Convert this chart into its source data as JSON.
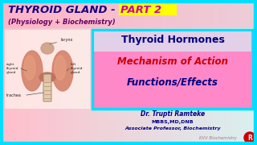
{
  "bg_gradient_left": "#FFB0B0",
  "bg_gradient_right": "#FFFFFF",
  "border_color": "#00DFFF",
  "title_text1": "THYROID GLAND - ",
  "title_text2": "PART 2",
  "subtitle": "(Physiology + Biochemistry)",
  "title_color1": "#1A0080",
  "title_color2": "#CC00AA",
  "title_underline_color": "#FFFF00",
  "subtitle_color": "#660066",
  "right_box_bg": "#FF88C8",
  "right_box_border": "#00DFFF",
  "line1": "Thyroid Hormones",
  "line2": "Mechanism of Action",
  "line3": "Functions/Effects",
  "line1_color": "#000080",
  "line2_color": "#CC0000",
  "line3_color": "#000080",
  "dr_name": "Dr. Trupti Ramteke",
  "dr_qual": "MBBS,MD,DNB",
  "dr_title": "Associate Professor, Biochemistry",
  "dr_color": "#000080",
  "watermark": "KVV Biochemistry",
  "logo_color": "#CC0000"
}
